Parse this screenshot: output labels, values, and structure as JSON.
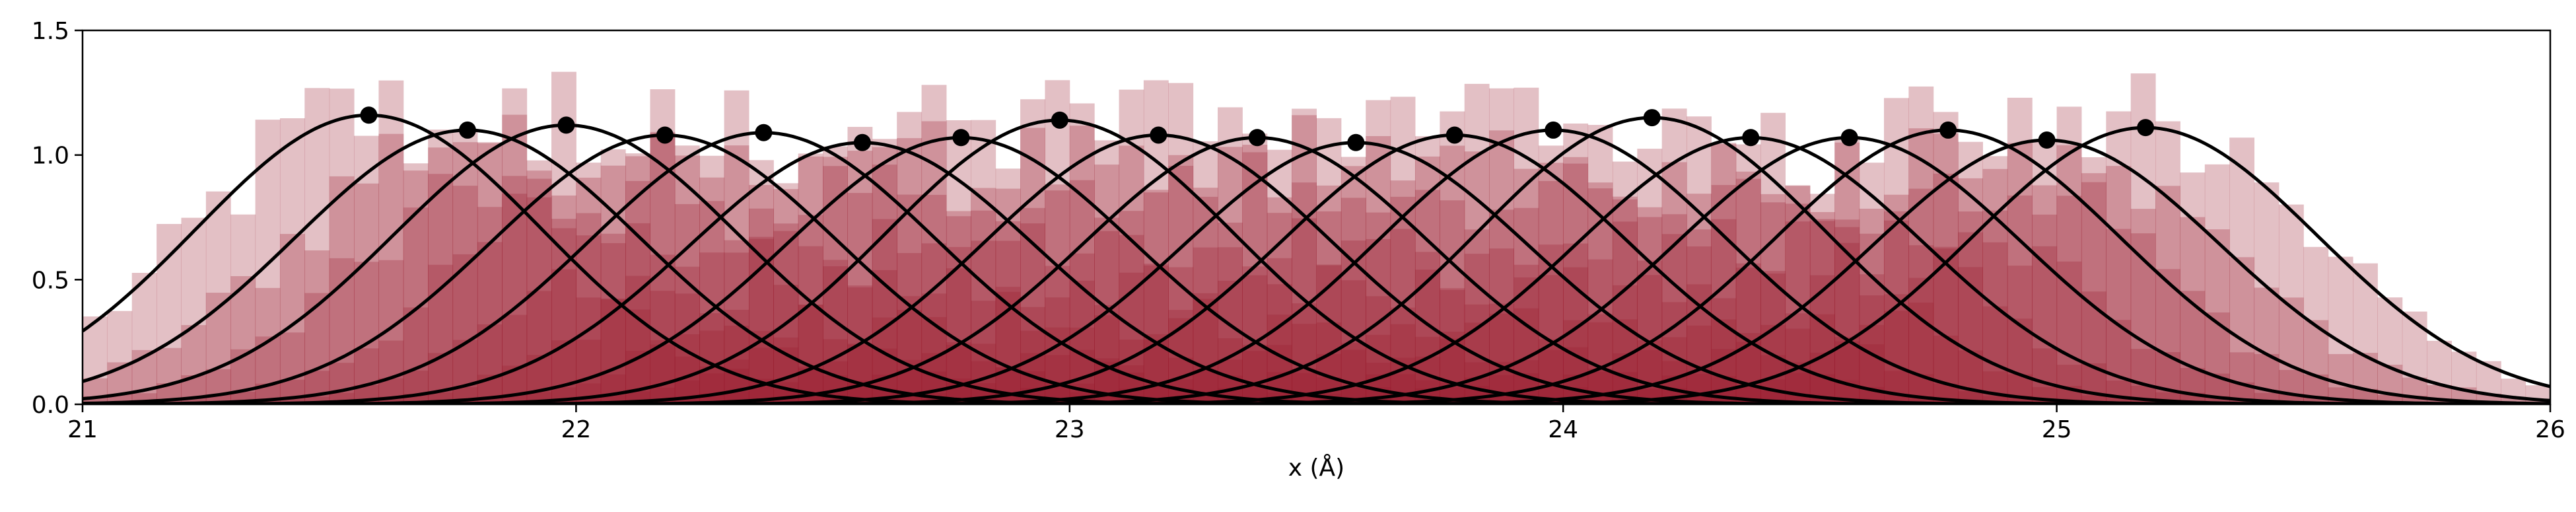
{
  "chart_data": {
    "type": "bar",
    "description_type": "overlapping histograms with fitted gaussian curves",
    "xlabel": "x (Å)",
    "ylabel": "",
    "title": "",
    "xlim": [
      21,
      26
    ],
    "ylim": [
      0,
      1.5
    ],
    "xticks": [
      "21",
      "22",
      "23",
      "24",
      "25",
      "26"
    ],
    "yticks": [
      "0.0",
      "0.5",
      "1.0",
      "1.5"
    ],
    "grid": false,
    "histogram_color": "#9b1b30",
    "curve_color": "#000000",
    "gaussian_sigma": 0.35,
    "peaks": [
      {
        "x": 21.58,
        "y": 1.16
      },
      {
        "x": 21.78,
        "y": 1.1
      },
      {
        "x": 21.98,
        "y": 1.12
      },
      {
        "x": 22.18,
        "y": 1.08
      },
      {
        "x": 22.38,
        "y": 1.09
      },
      {
        "x": 22.58,
        "y": 1.05
      },
      {
        "x": 22.78,
        "y": 1.07
      },
      {
        "x": 22.98,
        "y": 1.14
      },
      {
        "x": 23.18,
        "y": 1.08
      },
      {
        "x": 23.38,
        "y": 1.07
      },
      {
        "x": 23.58,
        "y": 1.05
      },
      {
        "x": 23.78,
        "y": 1.08
      },
      {
        "x": 23.98,
        "y": 1.1
      },
      {
        "x": 24.18,
        "y": 1.15
      },
      {
        "x": 24.38,
        "y": 1.07
      },
      {
        "x": 24.58,
        "y": 1.07
      },
      {
        "x": 24.78,
        "y": 1.1
      },
      {
        "x": 24.98,
        "y": 1.06
      },
      {
        "x": 25.18,
        "y": 1.11
      }
    ]
  }
}
